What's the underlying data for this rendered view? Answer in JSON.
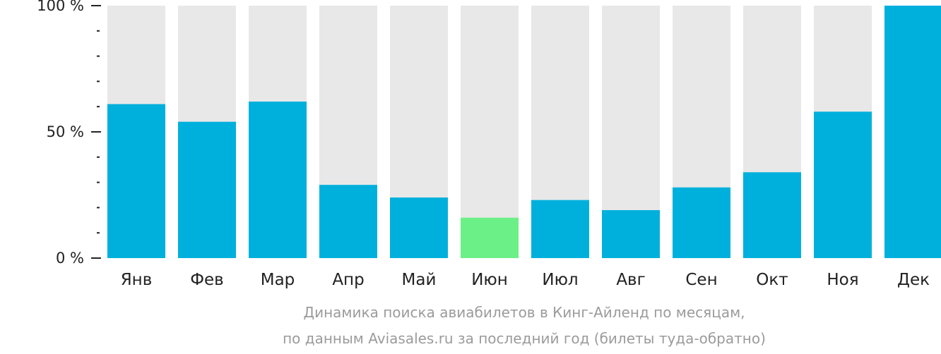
{
  "chart_data": {
    "type": "bar",
    "categories": [
      "Янв",
      "Фев",
      "Мар",
      "Апр",
      "Май",
      "Июн",
      "Июл",
      "Авг",
      "Сен",
      "Окт",
      "Ноя",
      "Дек"
    ],
    "values": [
      61,
      54,
      62,
      29,
      24,
      16,
      23,
      19,
      28,
      34,
      58,
      100
    ],
    "highlight_index": 5,
    "ylim": [
      0,
      100
    ],
    "y_ticks": [
      {
        "value": 0,
        "label": "0 %"
      },
      {
        "value": 50,
        "label": "50 %"
      },
      {
        "value": 100,
        "label": "100 %"
      }
    ],
    "y_minor_step": 10,
    "grid": false,
    "colors": {
      "bar": "#00b0dc",
      "highlight": "#6bf087",
      "track": "#e8e8e8",
      "axis": "#222222"
    },
    "caption_line1": "Динамика поиска авиабилетов в Кинг-Айленд по месяцам,",
    "caption_line2": "по данным Aviasales.ru за последний год (билеты туда-обратно)"
  }
}
